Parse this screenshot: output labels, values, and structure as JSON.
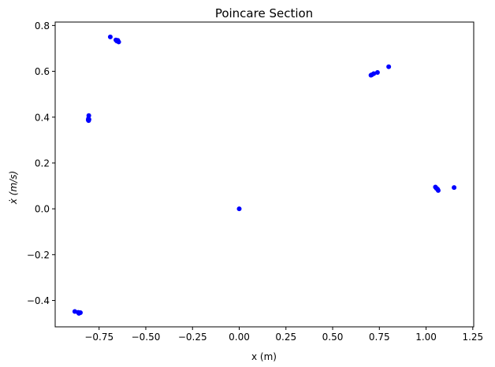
{
  "chart_data": {
    "type": "scatter",
    "title": "Poincare Section",
    "xlabel": "x (m)",
    "ylabel": "ẋ (m/s)",
    "xlim": [
      -0.985,
      1.255
    ],
    "ylim": [
      -0.515,
      0.815
    ],
    "xticks": [
      -0.75,
      -0.5,
      -0.25,
      0.0,
      0.25,
      0.5,
      0.75,
      1.0,
      1.25
    ],
    "xtick_labels": [
      "−0.75",
      "−0.50",
      "−0.25",
      "0.00",
      "0.25",
      "0.50",
      "0.75",
      "1.00",
      "1.25"
    ],
    "yticks": [
      -0.4,
      -0.2,
      0.0,
      0.2,
      0.4,
      0.6,
      0.8
    ],
    "ytick_labels": [
      "−0.4",
      "−0.2",
      "0.0",
      "0.2",
      "0.4",
      "0.6",
      "0.8"
    ],
    "grid": false,
    "marker_color": "#0000ff",
    "series": [
      {
        "points": [
          [
            0.0,
            0.0
          ],
          [
            -0.69,
            0.75
          ],
          [
            -0.66,
            0.737
          ],
          [
            -0.655,
            0.732
          ],
          [
            -0.65,
            0.735
          ],
          [
            -0.645,
            0.728
          ],
          [
            -0.805,
            0.407
          ],
          [
            -0.807,
            0.393
          ],
          [
            -0.808,
            0.388
          ],
          [
            -0.806,
            0.385
          ],
          [
            -0.804,
            0.39
          ],
          [
            -0.88,
            -0.448
          ],
          [
            -0.862,
            -0.452
          ],
          [
            -0.855,
            -0.454
          ],
          [
            -0.85,
            -0.453
          ],
          [
            -0.858,
            -0.456
          ],
          [
            0.8,
            0.62
          ],
          [
            0.74,
            0.595
          ],
          [
            0.72,
            0.59
          ],
          [
            0.71,
            0.585
          ],
          [
            0.705,
            0.583
          ],
          [
            1.15,
            0.093
          ],
          [
            1.05,
            0.095
          ],
          [
            1.055,
            0.09
          ],
          [
            1.058,
            0.088
          ],
          [
            1.062,
            0.085
          ],
          [
            1.065,
            0.08
          ]
        ]
      }
    ]
  }
}
